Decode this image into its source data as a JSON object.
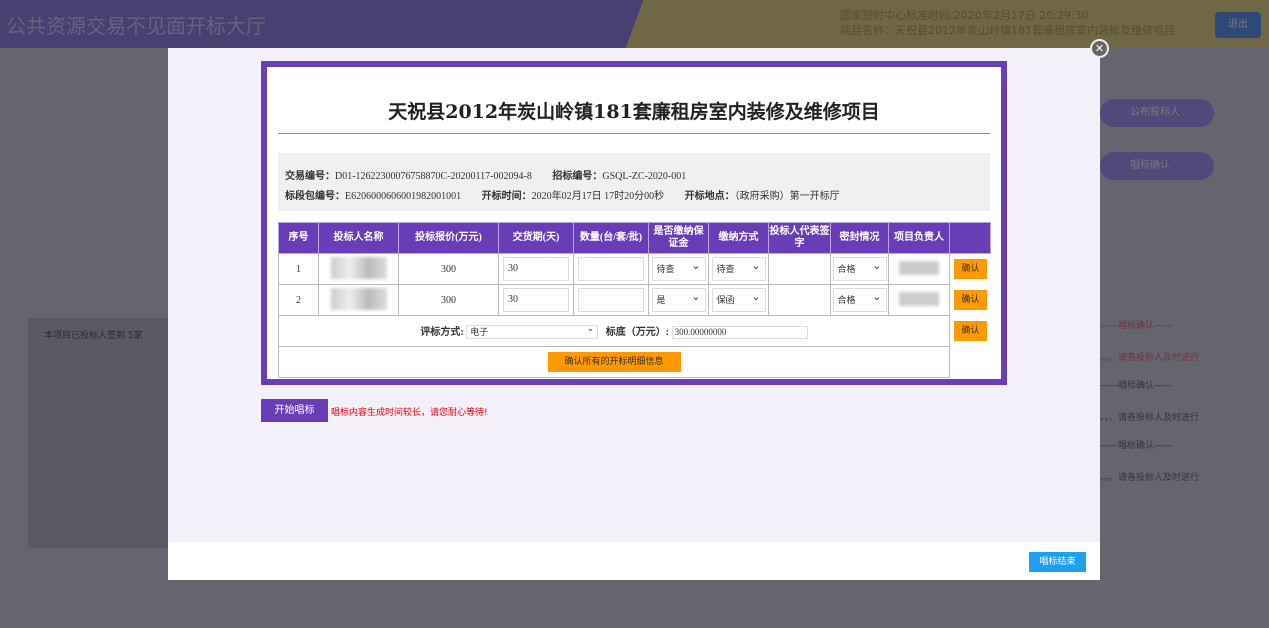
{
  "background": {
    "app_title": "公共资源交易不见面开标大厅",
    "server_time": "国家授时中心标准时间:2020年2月17日 20:29:30",
    "project_name": "项目名称：天祝县2012年炭山岭镇181套廉租房室内装修及维修项目",
    "header_button": "退出",
    "steps": [
      "公布投标人",
      "唱标确认"
    ],
    "left_panel_text": "本项目已投标人签到 5家",
    "log_lines": [
      "——唱标确认——",
      "。。。请各投标人及时进行",
      "——唱标确认——",
      "。。。请各投标人及时进行",
      "——唱标确认——",
      "。。。请各投标人及时进行"
    ]
  },
  "modal": {
    "title": "天祝县2012年炭山岭镇181套廉租房室内装修及维修项目",
    "info": {
      "trade_no_label": "交易编号：",
      "trade_no": "D01-12622300076758870C-20200117-002094-8",
      "tender_no_label": "招标编号：",
      "tender_no": "GSQL-ZC-2020-001",
      "package_no_label": "标段包编号：",
      "package_no": "E6206000606001982001001",
      "open_time_label": "开标时间：",
      "open_time": "2020年02月17日 17时20分00秒",
      "open_place_label": "开标地点：",
      "open_place": "（政府采购）第一开标厅"
    },
    "table": {
      "headers": [
        "序号",
        "投标人名称",
        "投标报价(万元)",
        "交货期(天)",
        "数量(台/套/批)",
        "是否缴纳保证金",
        "缴纳方式",
        "投标人代表签字",
        "密封情况",
        "项目负责人"
      ],
      "rows": [
        {
          "index": "1",
          "price": "300",
          "delivery": "30",
          "quantity": "",
          "deposit": "待查",
          "pay_method": "待查",
          "signature": "",
          "seal": "合格",
          "confirm": "确认"
        },
        {
          "index": "2",
          "price": "300",
          "delivery": "30",
          "quantity": "",
          "deposit": "是",
          "pay_method": "保函",
          "signature": "",
          "seal": "合格",
          "confirm": "确认"
        }
      ],
      "eval_label": "评标方式:",
      "eval_value": "电子",
      "base_label": "标底（万元）:",
      "base_value": "300.00000000",
      "confirm": "确认",
      "confirm_all": "确认所有的开标明细信息"
    },
    "start_button": "开始唱标",
    "wait_message": "唱标内容生成时间较长，请您耐心等待!",
    "end_button": "唱标结束",
    "close_icon": "close-icon"
  }
}
